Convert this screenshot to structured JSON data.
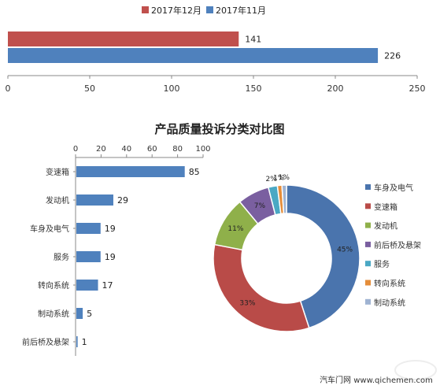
{
  "colors": {
    "dec": "#c0504d",
    "nov": "#4f81bd",
    "bar": "#4f81bd",
    "axis": "#888888",
    "pie": [
      "#4a74ad",
      "#b94b48",
      "#8fb04a",
      "#7a5fa0",
      "#4aa8c4",
      "#e58d3a",
      "#9fb3d2"
    ]
  },
  "watermark": "汽车门网 www.qichemen.com",
  "chart_data": [
    {
      "type": "bar",
      "orientation": "horizontal",
      "series": [
        {
          "name": "2017年12月",
          "values": [
            141
          ]
        },
        {
          "name": "2017年11月",
          "values": [
            226
          ]
        }
      ],
      "xlim": [
        0,
        250
      ],
      "xticks": [
        0,
        50,
        100,
        150,
        200,
        250
      ],
      "legend": "top"
    },
    {
      "type": "bar",
      "orientation": "horizontal",
      "title": "产品质量投诉分类对比图",
      "categories": [
        "变速箱",
        "发动机",
        "车身及电气",
        "服务",
        "转向系统",
        "制动系统",
        "前后桥及悬架"
      ],
      "values": [
        85,
        29,
        19,
        19,
        17,
        5,
        1
      ],
      "xlim": [
        0,
        100
      ],
      "xticks": [
        0,
        20,
        40,
        60,
        80,
        100
      ],
      "axis_position": "top"
    },
    {
      "type": "pie",
      "style": "donut",
      "labels": [
        "车身及电气",
        "变速箱",
        "发动机",
        "前后桥及悬架",
        "服务",
        "转向系统",
        "制动系统"
      ],
      "values": [
        45,
        33,
        11,
        7,
        2,
        1,
        1
      ],
      "value_labels": [
        "45%",
        "33%",
        "11%",
        "7%",
        "2%",
        "1%",
        "1%"
      ],
      "legend": "right"
    }
  ]
}
